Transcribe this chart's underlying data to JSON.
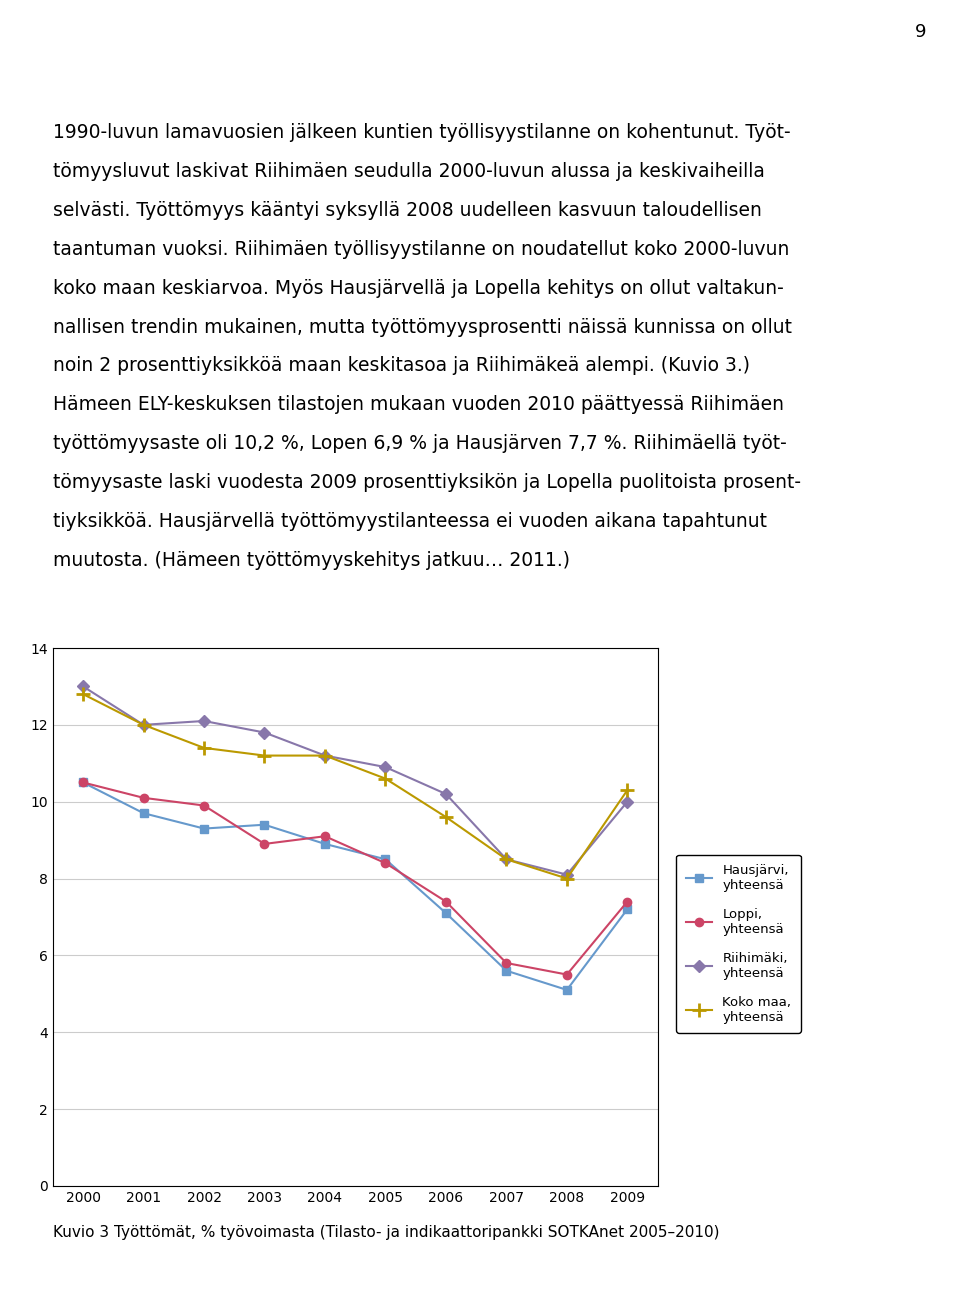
{
  "years": [
    2000,
    2001,
    2002,
    2003,
    2004,
    2005,
    2006,
    2007,
    2008,
    2009
  ],
  "hausjärvi": [
    10.5,
    9.7,
    9.3,
    9.4,
    8.9,
    8.5,
    7.1,
    5.6,
    5.1,
    7.2
  ],
  "loppi": [
    10.5,
    10.1,
    9.9,
    8.9,
    9.1,
    8.4,
    7.4,
    5.8,
    5.5,
    7.4
  ],
  "riihimäki": [
    13.0,
    12.0,
    12.1,
    11.8,
    11.2,
    10.9,
    10.2,
    8.5,
    8.1,
    10.0
  ],
  "koko_maa": [
    12.8,
    12.0,
    11.4,
    11.2,
    11.2,
    10.6,
    9.6,
    8.5,
    8.0,
    10.3
  ],
  "hausjärvi_color": "#6699CC",
  "loppi_color": "#CC4466",
  "riihimäki_color": "#8877AA",
  "koko_maa_color": "#BB9900",
  "ylim": [
    0,
    14
  ],
  "yticks": [
    0,
    2,
    4,
    6,
    8,
    10,
    12,
    14
  ],
  "legend_labels": [
    "Hausjärvi,\nyhteensä",
    "Loppi,\nyhteensä",
    "Riihimäki,\nyhteensä",
    "Koko maa,\nyhteensä"
  ],
  "caption": "Kuvio 3 Työttömät, % työvoimasta (Tilasto- ja indikaattoripankki SOTKAnet 2005–2010)",
  "text_lines": [
    "1990-luvun lamavuosien jälkeen kuntien työllisyystilanne on kohentunut. Työt-",
    "tömyysluvut laskivat Riihimäen seudulla 2000-luvun alussa ja keskivaiheilla",
    "selvästi. Työttömyys kääntyi syksyllä 2008 uudelleen kasvuun taloudellisen",
    "taantuman vuoksi. Riihimäen työllisyystilanne on noudatellut koko 2000-luvun",
    "koko maan keskiarvoa. Myös Hausjärvellä ja Lopella kehitys on ollut valtakun-",
    "nallisen trendin mukainen, mutta työttömyysprosentti näissä kunnissa on ollut",
    "noin 2 prosenttiyksikköä maan keskitasoa ja Riihimäkeä alempi. (Kuvio 3.)",
    "Hämeen ELY-keskuksen tilastojen mukaan vuoden 2010 päättyessä Riihimäen",
    "työttömyysaste oli 10,2 %, Lopen 6,9 % ja Hausjärven 7,7 %. Riihimäellä työt-",
    "tömyysaste laski vuodesta 2009 prosenttiyksikön ja Lopella puolitoista prosent-",
    "tiyksikköä. Hausjärvellä työttömyystilanteessa ei vuoden aikana tapahtunut",
    "muutosta. (Hämeen työttömyyskehitys jatkuu… 2011.)"
  ],
  "page_number": "9"
}
